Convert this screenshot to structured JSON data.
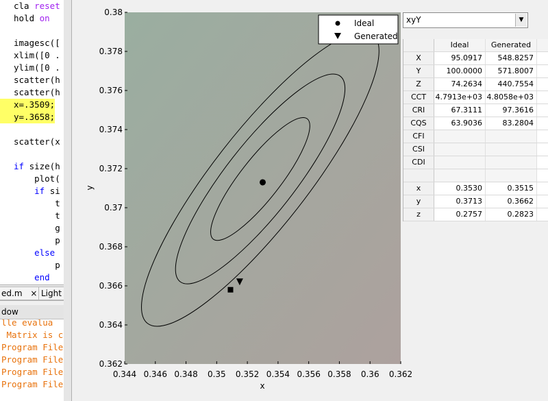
{
  "editor": {
    "lines": [
      {
        "parts": [
          {
            "t": "cla "
          },
          {
            "t": "reset",
            "k": "kw2"
          }
        ]
      },
      {
        "parts": [
          {
            "t": "hold "
          },
          {
            "t": "on",
            "k": "kw2"
          }
        ]
      },
      {
        "parts": [
          {
            "t": ""
          }
        ]
      },
      {
        "parts": [
          {
            "t": "imagesc(["
          }
        ]
      },
      {
        "parts": [
          {
            "t": "xlim([0 ."
          }
        ]
      },
      {
        "parts": [
          {
            "t": "ylim([0 ."
          }
        ]
      },
      {
        "parts": [
          {
            "t": "scatter(h"
          }
        ]
      },
      {
        "parts": [
          {
            "t": "scatter(h"
          }
        ]
      },
      {
        "parts": [
          {
            "t": "x=.3509;"
          }
        ],
        "hl": true
      },
      {
        "parts": [
          {
            "t": "y=.3658;"
          }
        ],
        "hl": true
      },
      {
        "parts": [
          {
            "t": ""
          }
        ]
      },
      {
        "parts": [
          {
            "t": "scatter(x"
          }
        ]
      },
      {
        "parts": [
          {
            "t": ""
          }
        ]
      },
      {
        "parts": [
          {
            "t": "if ",
            "k": "kw"
          },
          {
            "t": "size(h"
          }
        ]
      },
      {
        "parts": [
          {
            "t": "    plot("
          }
        ]
      },
      {
        "parts": [
          {
            "t": "    "
          },
          {
            "t": "if ",
            "k": "kw"
          },
          {
            "t": "si"
          }
        ]
      },
      {
        "parts": [
          {
            "t": "        t"
          }
        ]
      },
      {
        "parts": [
          {
            "t": "        t"
          }
        ]
      },
      {
        "parts": [
          {
            "t": "        g"
          }
        ]
      },
      {
        "parts": [
          {
            "t": "        p"
          }
        ]
      },
      {
        "parts": [
          {
            "t": "    "
          },
          {
            "t": "else",
            "k": "kw"
          }
        ]
      },
      {
        "parts": [
          {
            "t": "        p"
          }
        ]
      },
      {
        "parts": [
          {
            "t": "    "
          },
          {
            "t": "end",
            "k": "kw"
          }
        ]
      }
    ],
    "tabs": [
      "ed.m",
      "Light"
    ],
    "tab_close": "×"
  },
  "command_window": {
    "title": "dow",
    "lines": [
      "lle evalua",
      " Matrix is c",
      "Program File",
      "Program File",
      "Program File",
      "Program File"
    ]
  },
  "colors": {
    "plot_bg_top_left": "#9aaea0",
    "plot_bg_bottom_right": "#ada19e",
    "contour": "#000000",
    "highlight": "#ffff66"
  },
  "legend": {
    "items": [
      {
        "label": "Ideal",
        "marker": "circle"
      },
      {
        "label": "Generated",
        "marker": "triangle-down"
      }
    ]
  },
  "chart_data": {
    "type": "scatter",
    "xlabel": "x",
    "ylabel": "y",
    "xlim": [
      0.344,
      0.362
    ],
    "ylim": [
      0.362,
      0.38
    ],
    "xticks": [
      "0.344",
      "0.346",
      "0.348",
      "0.35",
      "0.352",
      "0.354",
      "0.356",
      "0.358",
      "0.36",
      "0.362"
    ],
    "yticks": [
      "0.362",
      "0.364",
      "0.366",
      "0.368",
      "0.37",
      "0.372",
      "0.374",
      "0.376",
      "0.378",
      "0.38"
    ],
    "legend_position": "top-right",
    "points": [
      {
        "name": "Ideal",
        "marker": "circle",
        "x": 0.353,
        "y": 0.3713
      },
      {
        "name": "Generated",
        "marker": "triangle-down",
        "x": 0.3515,
        "y": 0.3662
      },
      {
        "name": "",
        "marker": "square",
        "x": 0.3509,
        "y": 0.3658
      }
    ],
    "contours": [
      {
        "cx": 0.35284,
        "cy": 0.37147,
        "rx": 0.00131,
        "ry": 0.00391,
        "angle": 38
      },
      {
        "cx": 0.35284,
        "cy": 0.37147,
        "rx": 0.00227,
        "ry": 0.00667,
        "angle": 38
      },
      {
        "cx": 0.35284,
        "cy": 0.37147,
        "rx": 0.00309,
        "ry": 0.00938,
        "angle": 38
      }
    ]
  },
  "panel": {
    "dropdown": {
      "value": "xyY",
      "arrow": "▼"
    },
    "table": {
      "headers": [
        "",
        "Ideal",
        "Generated"
      ],
      "rows": [
        [
          "X",
          "95.0917",
          "548.8257"
        ],
        [
          "Y",
          "100.0000",
          "571.8007"
        ],
        [
          "Z",
          "74.2634",
          "440.7554"
        ],
        [
          "CCT",
          "4.7913e+03",
          "4.8058e+03"
        ],
        [
          "CRI",
          "67.3111",
          "97.3616"
        ],
        [
          "CQS",
          "63.9036",
          "83.2804"
        ],
        [
          "CFI",
          "",
          ""
        ],
        [
          "CSI",
          "",
          ""
        ],
        [
          "CDI",
          "",
          ""
        ],
        [
          "",
          "",
          ""
        ],
        [
          "x",
          "0.3530",
          "0.3515"
        ],
        [
          "y",
          "0.3713",
          "0.3662"
        ],
        [
          "z",
          "0.2757",
          "0.2823"
        ]
      ]
    }
  }
}
